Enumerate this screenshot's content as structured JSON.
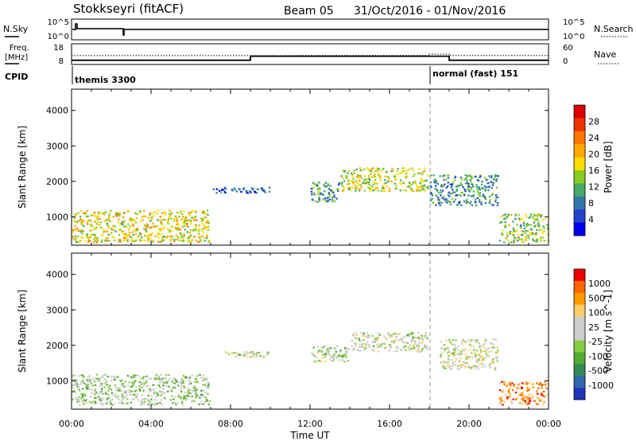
{
  "header": {
    "title": "Stokkseyri (fitACF)",
    "beam": "Beam 05",
    "date_range": "31/Oct/2016 - 01/Nov/2016"
  },
  "chart_data": [
    {
      "type": "line",
      "panel": "noise",
      "ylabel_left": "N.Sky",
      "ylabel_right": "N.Search",
      "yticks_left": [
        "10^5",
        "10^0"
      ],
      "yticks_right": [
        "10^5",
        "10^0"
      ]
    },
    {
      "type": "line",
      "panel": "frequency-nave",
      "ylabel_left_lines": [
        "Freq.",
        "[MHz]"
      ],
      "yticks_left": [
        "18",
        "8"
      ],
      "ylabel_right": "Nave",
      "yticks_right": [
        "60",
        "0"
      ],
      "cpid_label": "CPID",
      "cpid_segments": [
        {
          "start_hour": 0,
          "end_hour": 18,
          "label": "themis 3300"
        },
        {
          "start_hour": 18,
          "end_hour": 24,
          "label": "normal (fast) 151"
        }
      ],
      "freq_steps": [
        {
          "hour": 0,
          "freq_mhz": 9.5
        },
        {
          "hour": 9,
          "freq_mhz": 11.8
        },
        {
          "hour": 19,
          "freq_mhz": 9.5
        },
        {
          "hour": 24,
          "freq_mhz": 9.5
        }
      ],
      "nave_steps": [
        {
          "hour": 0,
          "nave": 25
        },
        {
          "hour": 18,
          "nave": 30
        },
        {
          "hour": 19,
          "nave": 25
        },
        {
          "hour": 24,
          "nave": 25
        }
      ]
    },
    {
      "type": "heatmap",
      "panel": "power",
      "ylabel": "Slant Range [km]",
      "yticks": [
        "4000",
        "3000",
        "2000",
        "1000"
      ],
      "ylim": [
        200,
        4600
      ],
      "colorbar_label": "Power [dB]",
      "colorbar_ticks": [
        "28",
        "24",
        "20",
        "16",
        "12",
        "8",
        "4"
      ],
      "colorbar_colors": [
        "#0000ee",
        "#2244cc",
        "#3377aa",
        "#44aa66",
        "#88cc22",
        "#ffdd00",
        "#ffaa00",
        "#ff7700",
        "#ee3300",
        "#dd0000"
      ],
      "regions": [
        {
          "t0": 0.0,
          "t1": 7.0,
          "r0": 250,
          "r1": 1200,
          "level": 0.55
        },
        {
          "t0": 7.0,
          "t1": 10.0,
          "r0": 1650,
          "r1": 1850,
          "level": 0.2
        },
        {
          "t0": 12.0,
          "t1": 13.5,
          "r0": 1400,
          "r1": 2000,
          "level": 0.3
        },
        {
          "t0": 13.5,
          "t1": 18.0,
          "r0": 1700,
          "r1": 2400,
          "level": 0.5
        },
        {
          "t0": 18.0,
          "t1": 21.5,
          "r0": 1300,
          "r1": 2200,
          "level": 0.3
        },
        {
          "t0": 21.5,
          "t1": 24.0,
          "r0": 250,
          "r1": 1100,
          "level": 0.45
        }
      ]
    },
    {
      "type": "heatmap",
      "panel": "velocity",
      "ylabel": "Slant Range [km]",
      "yticks": [
        "4000",
        "3000",
        "2000",
        "1000"
      ],
      "ylim": [
        200,
        4600
      ],
      "xlabel": "Time UT",
      "xticks": [
        "00:00",
        "04:00",
        "08:00",
        "12:00",
        "16:00",
        "20:00",
        "00:00"
      ],
      "colorbar_label": "Velocity [m s^-1]",
      "colorbar_ticks": [
        "1000",
        "500",
        "100",
        "25",
        "-25",
        "-100",
        "-500",
        "-1000"
      ],
      "colorbar_colors": [
        "#2233bb",
        "#3366aa",
        "#338855",
        "#55aa33",
        "#88cc44",
        "#cccccc",
        "#cccccc",
        "#ffcc66",
        "#ff9900",
        "#ff6600",
        "#ee0000"
      ],
      "regions": [
        {
          "t0": 0.0,
          "t1": 7.0,
          "r0": 300,
          "r1": 1200,
          "level": 0.45
        },
        {
          "t0": 7.5,
          "t1": 10.0,
          "r0": 1650,
          "r1": 1850,
          "level": 0.5
        },
        {
          "t0": 12.0,
          "t1": 14.0,
          "r0": 1500,
          "r1": 2000,
          "level": 0.5
        },
        {
          "t0": 14.0,
          "t1": 18.0,
          "r0": 1800,
          "r1": 2400,
          "level": 0.52
        },
        {
          "t0": 18.5,
          "t1": 21.5,
          "r0": 1300,
          "r1": 2200,
          "level": 0.55
        },
        {
          "t0": 21.5,
          "t1": 24.0,
          "r0": 300,
          "r1": 1000,
          "level": 0.8
        }
      ]
    }
  ]
}
